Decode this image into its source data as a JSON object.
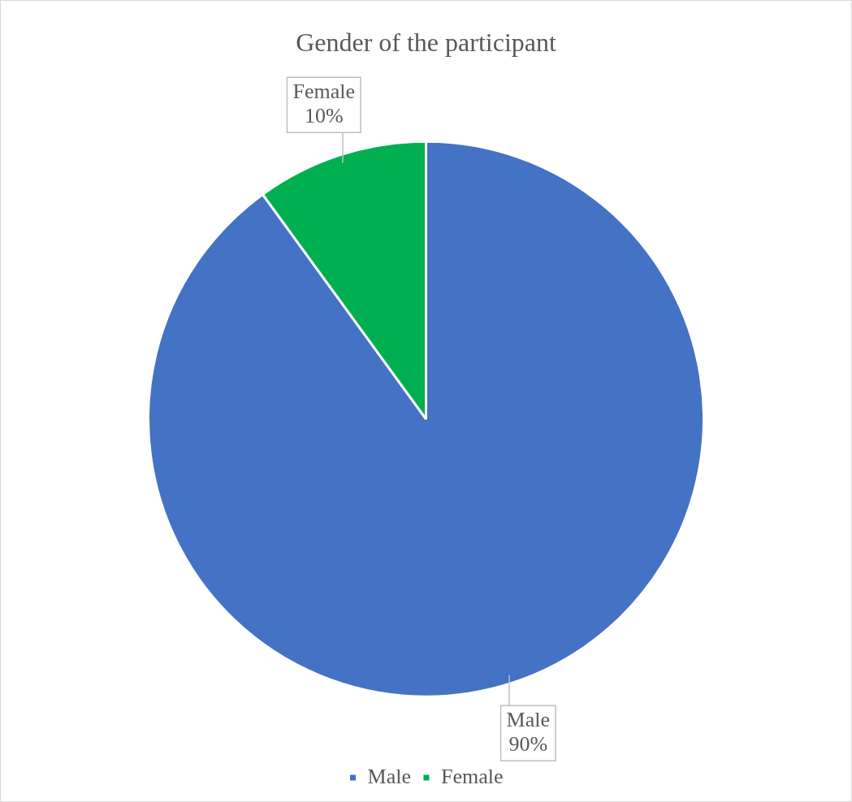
{
  "chart_data": {
    "type": "pie",
    "title": "Gender of the participant",
    "categories": [
      "Male",
      "Female"
    ],
    "values": [
      90,
      10
    ],
    "colors": [
      "#4472c4",
      "#00b050"
    ],
    "value_labels": [
      "90%",
      "10%"
    ],
    "legend": "bottom"
  }
}
